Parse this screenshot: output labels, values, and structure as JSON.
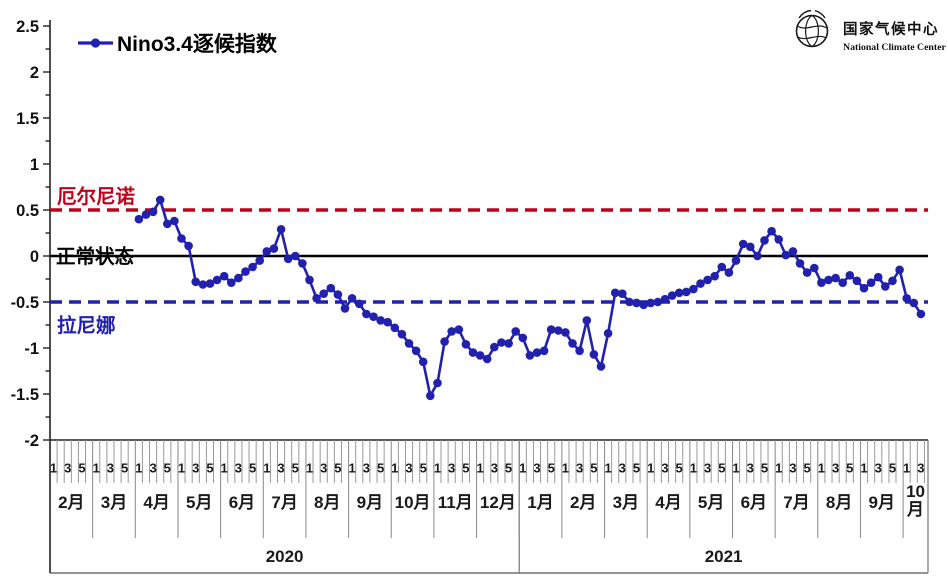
{
  "legend": {
    "label": "Nino3.4逐候指数"
  },
  "logo": {
    "name_cn": "国家气候中心",
    "name_en": "National Climate Center"
  },
  "reference_lines": [
    {
      "label": "厄尔尼诺",
      "value": 0.5,
      "color": "#c00018",
      "style": "dashed"
    },
    {
      "label": "正常状态",
      "value": 0,
      "color": "#000000",
      "style": "solid"
    },
    {
      "label": "拉尼娜",
      "value": -0.5,
      "color": "#2121ad",
      "style": "dashed"
    }
  ],
  "chart_data": {
    "type": "line",
    "title": "Nino3.4逐候指数",
    "ylim": [
      -2,
      2.5
    ],
    "y_tick_labels": [
      "2.5",
      "2",
      "1.5",
      "1",
      "0.5",
      "0",
      "-0.5",
      "-1",
      "-1.5",
      "-2"
    ],
    "pentad_tick_labels": [
      "1",
      "3",
      "5"
    ],
    "x_axis": {
      "years": [
        {
          "label": "2020",
          "months": [
            "2月",
            "3月",
            "4月",
            "5月",
            "6月",
            "7月",
            "8月",
            "9月",
            "10月",
            "11月",
            "12月"
          ]
        },
        {
          "label": "2021",
          "months": [
            "1月",
            "2月",
            "3月",
            "4月",
            "5月",
            "6月",
            "7月",
            "8月",
            "9月",
            "10月"
          ]
        }
      ],
      "last_month_visible_pentads": 3.5
    },
    "series": [
      {
        "name": "Nino3.4逐候指数",
        "color": "#2121ad",
        "start": {
          "year": "2020",
          "month": "4月",
          "pentad": 1
        },
        "values": [
          0.4,
          0.45,
          0.48,
          0.61,
          0.35,
          0.38,
          0.19,
          0.11,
          -0.28,
          -0.31,
          -0.3,
          -0.26,
          -0.22,
          -0.29,
          -0.24,
          -0.17,
          -0.12,
          -0.05,
          0.05,
          0.08,
          0.29,
          -0.03,
          0.0,
          -0.08,
          -0.26,
          -0.46,
          -0.41,
          -0.35,
          -0.42,
          -0.57,
          -0.46,
          -0.52,
          -0.63,
          -0.66,
          -0.7,
          -0.72,
          -0.78,
          -0.85,
          -0.95,
          -1.03,
          -1.15,
          -1.52,
          -1.38,
          -0.93,
          -0.82,
          -0.8,
          -0.96,
          -1.05,
          -1.08,
          -1.12,
          -0.99,
          -0.94,
          -0.95,
          -0.82,
          -0.89,
          -1.08,
          -1.05,
          -1.03,
          -0.8,
          -0.81,
          -0.83,
          -0.95,
          -1.03,
          -0.7,
          -1.07,
          -1.2,
          -0.84,
          -0.4,
          -0.41,
          -0.5,
          -0.51,
          -0.53,
          -0.51,
          -0.5,
          -0.47,
          -0.43,
          -0.4,
          -0.39,
          -0.36,
          -0.3,
          -0.26,
          -0.22,
          -0.12,
          -0.18,
          -0.05,
          0.13,
          0.1,
          0.0,
          0.17,
          0.27,
          0.18,
          0.01,
          0.05,
          -0.08,
          -0.18,
          -0.13,
          -0.29,
          -0.26,
          -0.24,
          -0.29,
          -0.21,
          -0.27,
          -0.35,
          -0.29,
          -0.23,
          -0.33,
          -0.27,
          -0.15,
          -0.46,
          -0.51,
          -0.63
        ]
      }
    ]
  },
  "colors": {
    "series_blue": "#2121ad",
    "el_nino_red": "#c00018",
    "normal_black": "#000000",
    "axis_dark": "#1a1a1a",
    "grid_gray": "#777777",
    "background": "#ffffff"
  }
}
